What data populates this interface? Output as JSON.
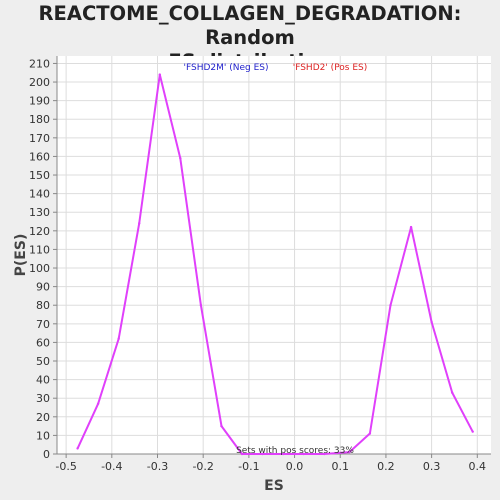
{
  "chart_data": {
    "type": "line",
    "title_line1": "REACTOME_COLLAGEN_DEGRADATION: Random",
    "title_line2": "ES distribution",
    "xlabel": "ES",
    "ylabel": "P(ES)",
    "xlim": [
      -0.52,
      0.43
    ],
    "ylim": [
      0,
      214
    ],
    "x_ticks": [
      -0.5,
      -0.4,
      -0.3,
      -0.2,
      -0.1,
      0.0,
      0.1,
      0.2,
      0.3,
      0.4
    ],
    "x_tick_labels": [
      "-0.5",
      "-0.4",
      "-0.3",
      "-0.2",
      "-0.1",
      "0.0",
      "0.1",
      "0.2",
      "0.3",
      "0.4"
    ],
    "y_ticks": [
      0,
      10,
      20,
      30,
      40,
      50,
      60,
      70,
      80,
      90,
      100,
      110,
      120,
      130,
      140,
      150,
      160,
      170,
      180,
      190,
      200,
      210
    ],
    "grid": true,
    "legend": [
      {
        "label": "'FSHD2M' (Neg ES)",
        "color": "#2222cc"
      },
      {
        "label": "'FSHD2' (Pos ES)",
        "color": "#dd2222"
      }
    ],
    "annotation": "Sets with pos scores: 33%",
    "line_color": "#e040fb",
    "series": [
      {
        "x": [
          -0.475,
          -0.43,
          -0.385,
          -0.34,
          -0.295,
          -0.25,
          -0.205,
          -0.16,
          -0.115,
          -0.07,
          -0.025,
          0.02,
          0.065,
          0.12,
          0.165,
          0.21,
          0.255,
          0.3,
          0.345,
          0.39
        ],
        "values": [
          3,
          27,
          62,
          124,
          204,
          159,
          80,
          15,
          0,
          0,
          0,
          0,
          0,
          1,
          11,
          80,
          122,
          71,
          33,
          12
        ]
      }
    ]
  }
}
